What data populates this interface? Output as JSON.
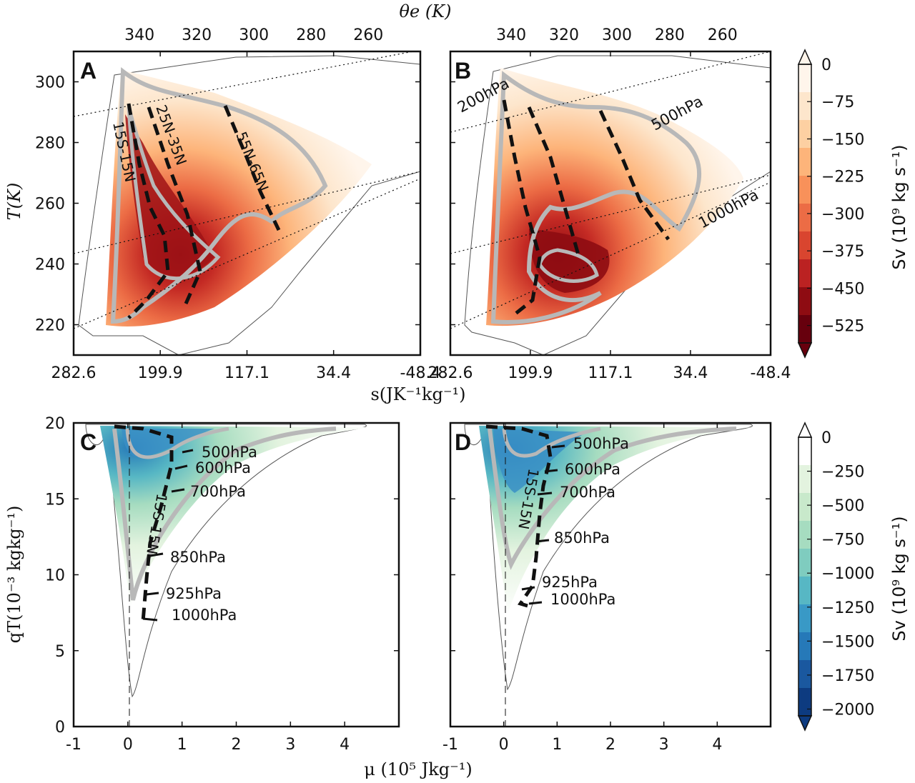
{
  "chart_data": [
    {
      "panel": "A",
      "type": "heatmap",
      "xlabel": "s(JK⁻¹kg⁻¹)",
      "ylabel": "T(K)",
      "top_axis_label": "θe (K)",
      "x_ticks": [
        "282.6",
        "199.9",
        "117.1",
        "34.4",
        "-48.4"
      ],
      "x_tick_values": [
        282.6,
        199.9,
        117.1,
        34.4,
        -48.4
      ],
      "top_ticks": [
        "340",
        "320",
        "300",
        "280",
        "260"
      ],
      "y_ticks": [
        "220",
        "240",
        "260",
        "280",
        "300"
      ],
      "y_tick_values": [
        220,
        240,
        260,
        280,
        300
      ],
      "xlim": [
        282.6,
        -48.4
      ],
      "ylim": [
        310,
        210
      ],
      "annotations": [
        "15S-15N",
        "25N-35N",
        "55N-65N"
      ],
      "colorbar": "orange"
    },
    {
      "panel": "B",
      "type": "heatmap",
      "xlabel": "s(JK⁻¹kg⁻¹)",
      "top_axis_label": "θe (K)",
      "x_ticks": [
        "282.6",
        "199.9",
        "117.1",
        "34.4",
        "-48.4"
      ],
      "x_tick_values": [
        282.6,
        199.9,
        117.1,
        34.4,
        -48.4
      ],
      "top_ticks": [
        "340",
        "320",
        "300",
        "280",
        "260"
      ],
      "y_tick_values": [
        220,
        240,
        260,
        280,
        300
      ],
      "xlim": [
        282.6,
        -48.4
      ],
      "ylim": [
        310,
        210
      ],
      "annotations": [
        "200hPa",
        "500hPa",
        "1000hPa"
      ],
      "colorbar": "orange"
    },
    {
      "panel": "C",
      "type": "heatmap",
      "xlabel": "μ (10⁵ Jkg⁻¹)",
      "ylabel": "qT(10⁻³ kgkg⁻¹)",
      "x_ticks": [
        "-1",
        "0",
        "1",
        "2",
        "3",
        "4"
      ],
      "x_tick_values": [
        -1,
        0,
        1,
        2,
        3,
        4
      ],
      "y_ticks": [
        "0",
        "5",
        "10",
        "15",
        "20"
      ],
      "y_tick_values": [
        0,
        5,
        10,
        15,
        20
      ],
      "xlim": [
        -1,
        5
      ],
      "ylim": [
        20,
        0
      ],
      "annotations": [
        "500hPa",
        "600hPa",
        "700hPa",
        "15S-15N",
        "850hPa",
        "925hPa",
        "1000hPa"
      ],
      "colorbar": "blue"
    },
    {
      "panel": "D",
      "type": "heatmap",
      "xlabel": "μ (10⁵ Jkg⁻¹)",
      "x_ticks": [
        "-1",
        "0",
        "1",
        "2",
        "3",
        "4"
      ],
      "x_tick_values": [
        -1,
        0,
        1,
        2,
        3,
        4
      ],
      "y_tick_values": [
        0,
        5,
        10,
        15,
        20
      ],
      "xlim": [
        -1,
        5
      ],
      "ylim": [
        20,
        0
      ],
      "annotations": [
        "500hPa",
        "600hPa",
        "700hPa",
        "15S-15N",
        "850hPa",
        "925hPa",
        "1000hPa"
      ],
      "colorbar": "blue"
    }
  ],
  "colorbars": {
    "orange": {
      "label": "Sv (10⁹ kg s⁻¹)",
      "ticks": [
        "0",
        "−75",
        "−150",
        "−225",
        "−300",
        "−375",
        "−450",
        "−525"
      ],
      "tick_values": [
        0,
        -75,
        -150,
        -225,
        -300,
        -375,
        -450,
        -525
      ],
      "range": [
        -560,
        0
      ],
      "colors": [
        "#fff5eb",
        "#fde6cc",
        "#fdd0a2",
        "#fdb47a",
        "#f8915a",
        "#ec6c45",
        "#d9452f",
        "#bb2222",
        "#8e0c12",
        "#67000d"
      ]
    },
    "blue": {
      "label": "Sv (10⁹ kg s⁻¹)",
      "ticks": [
        "0",
        "−250",
        "−500",
        "−750",
        "−1000",
        "−1250",
        "−1500",
        "−1750",
        "−2000"
      ],
      "tick_values": [
        0,
        -250,
        -500,
        -750,
        -1000,
        -1250,
        -1500,
        -1750,
        -2000
      ],
      "range": [
        -2050,
        0
      ],
      "colors": [
        "#ffffff",
        "#e3f3df",
        "#c8e9cb",
        "#a6dcc0",
        "#7fccbf",
        "#57b7c4",
        "#3999c6",
        "#2679b8",
        "#1a589f",
        "#0d3b80"
      ]
    }
  },
  "labels": {
    "top_axis": "θe (K)",
    "panel_A": "A",
    "panel_B": "B",
    "panel_C": "C",
    "panel_D": "D",
    "A_15S15N": "15S-15N",
    "A_25N35N": "25N-35N",
    "A_55N65N": "55N-65N",
    "B_200": "200hPa",
    "B_500": "500hPa",
    "B_1000": "1000hPa",
    "C_500": "500hPa",
    "C_600": "600hPa",
    "C_700": "700hPa",
    "C_15S15N": "15S-15N",
    "C_850": "850hPa",
    "C_925": "925hPa",
    "C_1000": "1000hPa",
    "D_500": "500hPa",
    "D_600": "600hPa",
    "D_700": "700hPa",
    "D_15S15N": "15S-15N",
    "D_850": "850hPa",
    "D_925": "925hPa",
    "D_1000": "1000hPa"
  }
}
